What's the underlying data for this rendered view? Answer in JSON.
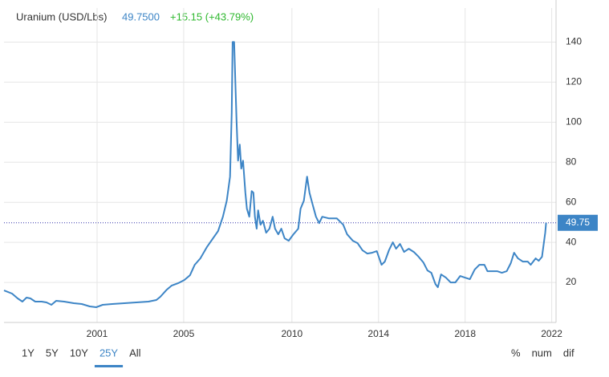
{
  "chart_data": {
    "type": "line",
    "title": "Uranium (USD/Lbs)",
    "price": "49.7500",
    "change": "+15.15 (+43.79%)",
    "last_value": 49.75,
    "x": [
      1996.7,
      1997.07,
      1997.33,
      1997.55,
      1997.74,
      1997.92,
      1998.14,
      1998.44,
      1998.66,
      1998.89,
      1999.11,
      1999.48,
      1999.92,
      2000.29,
      2000.66,
      2000.96,
      2001.26,
      2001.7,
      2002.26,
      2002.81,
      2003.37,
      2003.74,
      2003.92,
      2004.22,
      2004.44,
      2004.74,
      2005.03,
      2005.29,
      2005.51,
      2005.77,
      2006.07,
      2006.33,
      2006.59,
      2006.81,
      2006.99,
      2007.14,
      2007.22,
      2007.26,
      2007.33,
      2007.44,
      2007.51,
      2007.59,
      2007.66,
      2007.74,
      2007.85,
      2007.92,
      2008.03,
      2008.14,
      2008.22,
      2008.29,
      2008.37,
      2008.44,
      2008.55,
      2008.66,
      2008.81,
      2008.96,
      2009.11,
      2009.22,
      2009.37,
      2009.51,
      2009.66,
      2009.85,
      2010.07,
      2010.29,
      2010.4,
      2010.55,
      2010.7,
      2010.81,
      2010.96,
      2011.11,
      2011.26,
      2011.4,
      2011.7,
      2012.07,
      2012.37,
      2012.55,
      2012.81,
      2013.03,
      2013.26,
      2013.48,
      2013.7,
      2013.92,
      2014.14,
      2014.29,
      2014.48,
      2014.66,
      2014.81,
      2014.99,
      2015.18,
      2015.4,
      2015.63,
      2015.85,
      2016.07,
      2016.26,
      2016.44,
      2016.63,
      2016.74,
      2016.89,
      2017.11,
      2017.33,
      2017.55,
      2017.77,
      2017.99,
      2018.22,
      2018.44,
      2018.66,
      2018.89,
      2019.03,
      2019.26,
      2019.48,
      2019.7,
      2019.92,
      2020.11,
      2020.26,
      2020.44,
      2020.66,
      2020.89,
      2021.03,
      2021.26,
      2021.4,
      2021.55,
      2021.7,
      2021.74
    ],
    "series": [
      {
        "name": "Uranium",
        "color": "#3d85c6",
        "values": [
          16.0,
          14.4,
          12.0,
          10.4,
          12.4,
          12.0,
          10.4,
          10.4,
          10.0,
          8.8,
          10.8,
          10.4,
          9.6,
          9.2,
          8.0,
          7.6,
          8.8,
          9.2,
          9.6,
          10.0,
          10.4,
          11.2,
          12.8,
          16.4,
          18.4,
          19.6,
          21.2,
          23.6,
          28.8,
          32.0,
          37.6,
          41.6,
          45.6,
          52.8,
          60.8,
          72.8,
          104.8,
          140,
          140,
          100.8,
          80.8,
          88.8,
          76.8,
          80.8,
          64.8,
          56.8,
          52.8,
          65.6,
          64.8,
          52.8,
          46.8,
          56.0,
          48.8,
          50.8,
          44.8,
          46.8,
          52.8,
          46.8,
          44.0,
          46.8,
          42.0,
          40.8,
          44.0,
          46.8,
          56.8,
          60.8,
          72.8,
          64.8,
          58.8,
          52.8,
          49.6,
          52.8,
          52.0,
          52.0,
          48.8,
          44.0,
          40.8,
          39.6,
          36.0,
          34.4,
          34.8,
          35.6,
          28.8,
          30.4,
          36.0,
          40.0,
          36.8,
          39.2,
          35.2,
          36.8,
          35.2,
          32.8,
          30.0,
          26.0,
          24.8,
          19.2,
          17.6,
          24.0,
          22.4,
          20.0,
          20.0,
          23.2,
          22.4,
          21.6,
          26.4,
          28.8,
          28.8,
          25.6,
          25.6,
          25.6,
          24.8,
          25.6,
          29.6,
          34.8,
          32.0,
          30.4,
          30.4,
          28.8,
          32.0,
          30.8,
          32.8,
          44.8,
          49.75
        ]
      }
    ],
    "xlim": [
      1996.7,
      2022.2
    ],
    "xticks": [
      2001,
      2005,
      2010,
      2014,
      2018,
      2022
    ],
    "ylim": [
      0,
      157
    ],
    "yticks": [
      20,
      40,
      60,
      80,
      100,
      120,
      140
    ],
    "grid": true,
    "ranges": [
      "1Y",
      "5Y",
      "10Y",
      "25Y",
      "All"
    ],
    "active_range": "25Y",
    "modes": [
      "%",
      "num",
      "dif"
    ]
  }
}
